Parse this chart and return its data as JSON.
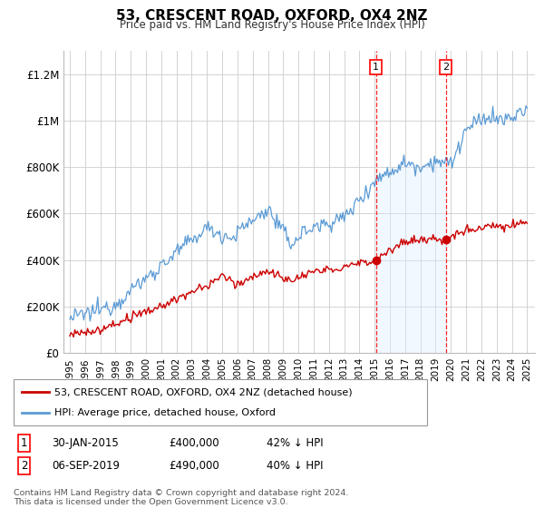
{
  "title": "53, CRESCENT ROAD, OXFORD, OX4 2NZ",
  "subtitle": "Price paid vs. HM Land Registry's House Price Index (HPI)",
  "ylim": [
    0,
    1300000
  ],
  "yticks": [
    0,
    200000,
    400000,
    600000,
    800000,
    1000000,
    1200000
  ],
  "ytick_labels": [
    "£0",
    "£200K",
    "£400K",
    "£600K",
    "£800K",
    "£1M",
    "£1.2M"
  ],
  "hpi_color": "#5b9bd5",
  "hpi_fill_color": "#ddeeff",
  "price_color": "#cc0000",
  "sale1_date": 2015.08,
  "sale1_price": 400000,
  "sale1_label": "1",
  "sale2_date": 2019.67,
  "sale2_price": 490000,
  "sale2_label": "2",
  "legend_line1": "53, CRESCENT ROAD, OXFORD, OX4 2NZ (detached house)",
  "legend_line2": "HPI: Average price, detached house, Oxford",
  "table_row1": [
    "1",
    "30-JAN-2015",
    "£400,000",
    "42% ↓ HPI"
  ],
  "table_row2": [
    "2",
    "06-SEP-2019",
    "£490,000",
    "40% ↓ HPI"
  ],
  "footnote": "Contains HM Land Registry data © Crown copyright and database right 2024.\nThis data is licensed under the Open Government Licence v3.0."
}
